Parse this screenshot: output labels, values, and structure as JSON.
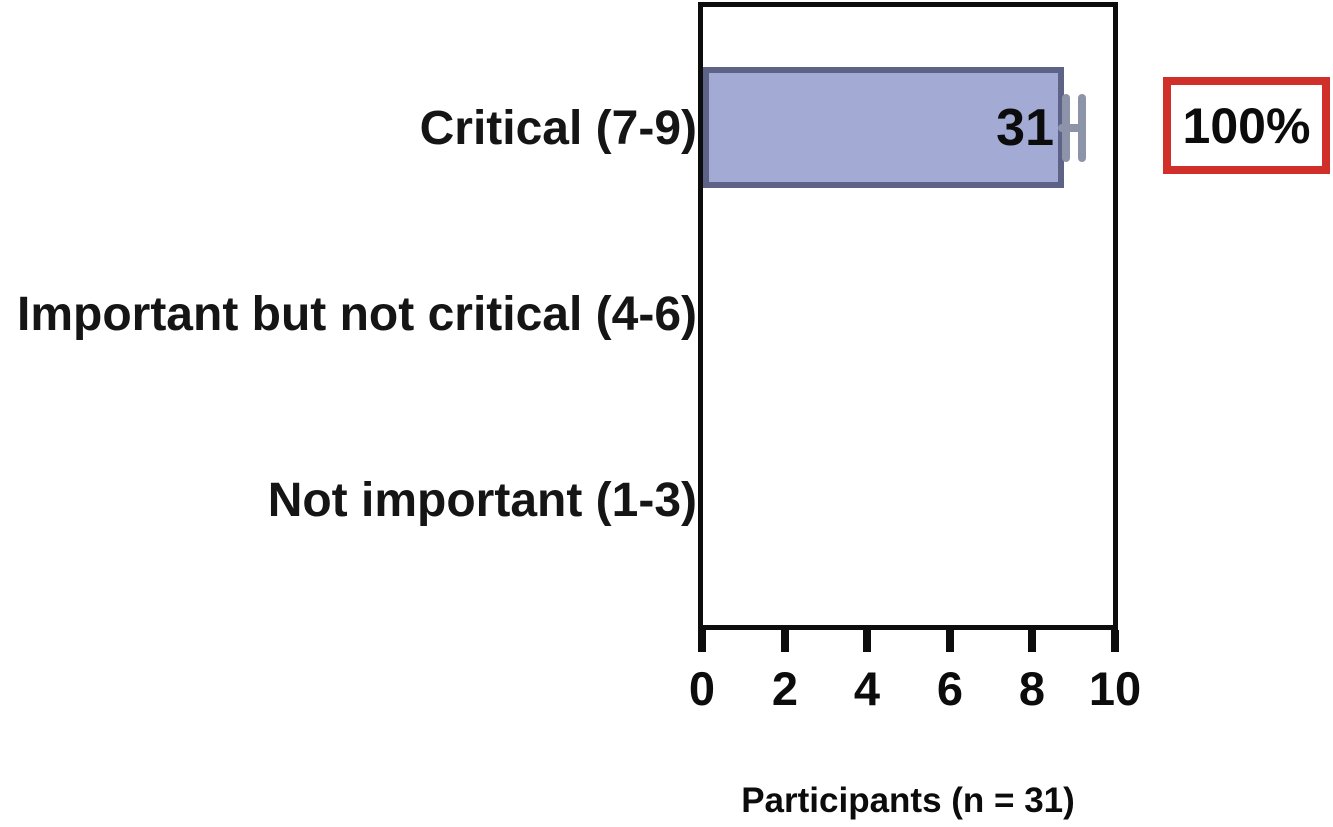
{
  "chart_data": {
    "type": "bar",
    "orientation": "horizontal",
    "title": "",
    "categories": [
      "Critical (7-9)",
      "Important but not critical (4-6)",
      "Not important (1-3)"
    ],
    "series": [
      {
        "name": "Participants",
        "values": [
          31,
          0,
          0
        ]
      }
    ],
    "value_labels": [
      "31",
      "",
      ""
    ],
    "bar_plotted_extent_axis_units": 8.7,
    "error_bar": {
      "category": "Critical (7-9)",
      "from": 8.7,
      "to": 9.2
    },
    "annotation": {
      "text": "100%",
      "applies_to": "Critical (7-9)"
    },
    "xlabel": "Participants (n = 31)",
    "ylabel": "",
    "xlim": [
      0,
      10
    ],
    "xticks": [
      0,
      2,
      4,
      6,
      8,
      10
    ],
    "x_tick_labels": [
      "0",
      "2",
      "4",
      "6",
      "8",
      "10"
    ],
    "grid": false,
    "legend": false,
    "colors": {
      "bar_fill": "#a3abd4",
      "bar_border": "#5c6386",
      "error_bar": "#8d93a8",
      "annotation_border": "#d1302a",
      "axis": "#0d0d0d",
      "text": "#0c0c0c"
    }
  }
}
